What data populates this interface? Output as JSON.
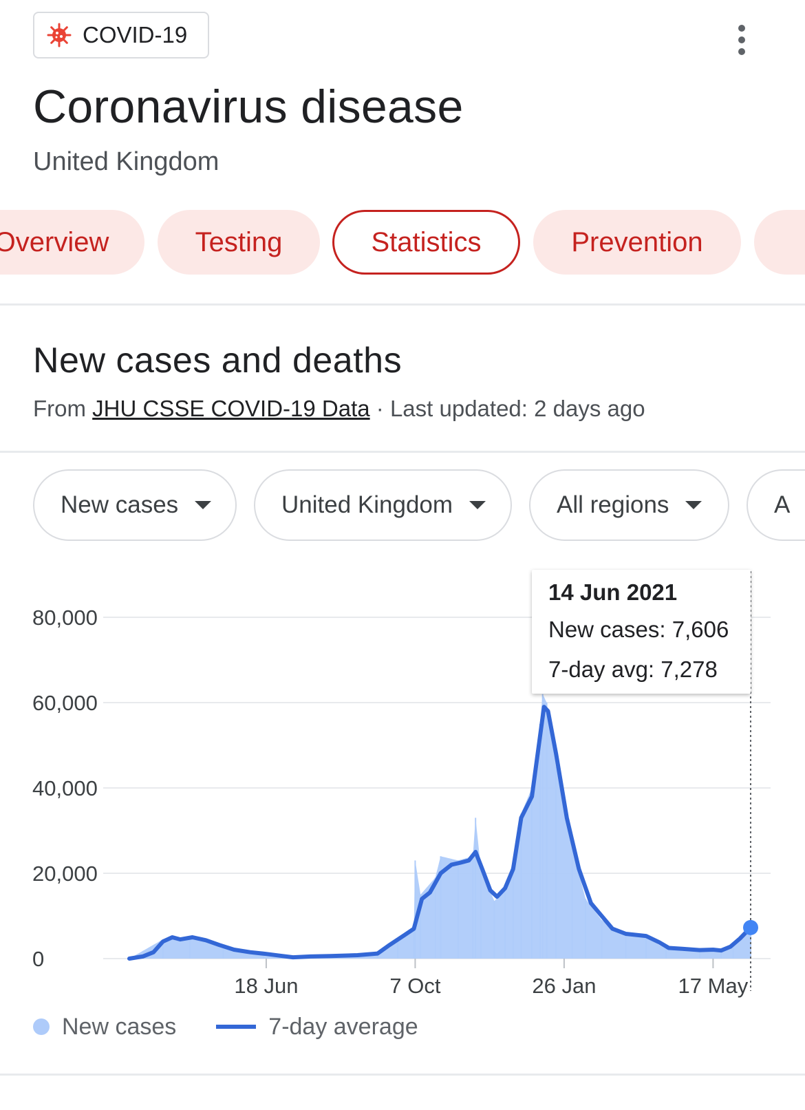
{
  "topic_chip": {
    "label": "COVID-19",
    "icon": "virus-icon",
    "icon_color": "#ea4335"
  },
  "header": {
    "title": "Coronavirus disease",
    "subtitle": "United Kingdom",
    "menu_icon": "more-vert-icon"
  },
  "tabs": [
    {
      "label": "Overview",
      "active": false
    },
    {
      "label": "Testing",
      "active": false
    },
    {
      "label": "Statistics",
      "active": true
    },
    {
      "label": "Prevention",
      "active": false
    },
    {
      "label": "",
      "active": false
    }
  ],
  "section": {
    "title": "New cases and deaths",
    "source_prefix": "From",
    "source_link": "JHU CSSE COVID-19 Data",
    "updated": "· Last updated: 2 days ago"
  },
  "filters": [
    {
      "label": "New cases"
    },
    {
      "label": "United Kingdom"
    },
    {
      "label": "All regions"
    },
    {
      "label": "A"
    }
  ],
  "tooltip": {
    "date": "14 Jun 2021",
    "new_cases": "New cases: 7,606",
    "avg": "7-day avg: 7,278"
  },
  "legend": {
    "bars_label": "New cases",
    "line_label": "7-day average"
  },
  "colors": {
    "accent": "#c5221f",
    "tab_bg": "#fce8e6",
    "bar": "#aecbfa",
    "line": "#3367d6"
  },
  "chart_data": {
    "type": "bar",
    "title": "",
    "xlabel": "",
    "ylabel": "",
    "ylim": [
      0,
      90000
    ],
    "grid": true,
    "yticks": [
      0,
      20000,
      40000,
      60000,
      80000
    ],
    "ytick_labels": [
      "0",
      "20,000",
      "40,000",
      "60,000",
      "80,000"
    ],
    "xticks": [
      {
        "x": 102,
        "label": "18 Jun"
      },
      {
        "x": 213,
        "label": "7 Oct"
      },
      {
        "x": 324,
        "label": "26 Jan"
      },
      {
        "x": 435,
        "label": "17 May"
      }
    ],
    "x_axis": "days since first case (tick labels are dates)",
    "x_range": [
      0,
      463
    ],
    "series": [
      {
        "name": "7-day average",
        "kind": "line",
        "points": [
          [
            0,
            0
          ],
          [
            10,
            500
          ],
          [
            18,
            1500
          ],
          [
            25,
            4000
          ],
          [
            32,
            5000
          ],
          [
            38,
            4500
          ],
          [
            47,
            5000
          ],
          [
            57,
            4300
          ],
          [
            67,
            3200
          ],
          [
            78,
            2100
          ],
          [
            90,
            1500
          ],
          [
            102,
            1100
          ],
          [
            112,
            700
          ],
          [
            122,
            300
          ],
          [
            135,
            500
          ],
          [
            150,
            600
          ],
          [
            170,
            800
          ],
          [
            185,
            1200
          ],
          [
            193,
            3000
          ],
          [
            205,
            5500
          ],
          [
            212,
            7000
          ],
          [
            218,
            14000
          ],
          [
            224,
            15500
          ],
          [
            232,
            20000
          ],
          [
            240,
            22000
          ],
          [
            247,
            22500
          ],
          [
            253,
            23000
          ],
          [
            258,
            25000
          ],
          [
            263,
            21000
          ],
          [
            269,
            16000
          ],
          [
            274,
            14500
          ],
          [
            280,
            16500
          ],
          [
            286,
            21000
          ],
          [
            292,
            33000
          ],
          [
            300,
            38000
          ],
          [
            306,
            52000
          ],
          [
            309,
            59000
          ],
          [
            312,
            58000
          ],
          [
            318,
            48000
          ],
          [
            326,
            33000
          ],
          [
            335,
            21000
          ],
          [
            344,
            13000
          ],
          [
            352,
            10000
          ],
          [
            360,
            7000
          ],
          [
            370,
            5800
          ],
          [
            385,
            5300
          ],
          [
            395,
            3800
          ],
          [
            402,
            2500
          ],
          [
            412,
            2300
          ],
          [
            425,
            2000
          ],
          [
            435,
            2100
          ],
          [
            441,
            1900
          ],
          [
            448,
            2800
          ],
          [
            455,
            4700
          ],
          [
            463,
            7278
          ]
        ]
      },
      {
        "name": "New cases",
        "kind": "bars",
        "points": [
          [
            0,
            0
          ],
          [
            25,
            4500
          ],
          [
            45,
            5000
          ],
          [
            70,
            3000
          ],
          [
            100,
            1200
          ],
          [
            122,
            400
          ],
          [
            150,
            700
          ],
          [
            185,
            1400
          ],
          [
            200,
            4500
          ],
          [
            212,
            7500
          ],
          [
            213,
            23000
          ],
          [
            217,
            15000
          ],
          [
            228,
            19000
          ],
          [
            232,
            24000
          ],
          [
            245,
            23000
          ],
          [
            256,
            24000
          ],
          [
            258,
            33000
          ],
          [
            262,
            21000
          ],
          [
            272,
            13500
          ],
          [
            280,
            16000
          ],
          [
            286,
            23000
          ],
          [
            292,
            34000
          ],
          [
            300,
            40000
          ],
          [
            306,
            55000
          ],
          [
            308,
            62000
          ],
          [
            311,
            60000
          ],
          [
            318,
            45000
          ],
          [
            330,
            26000
          ],
          [
            340,
            14000
          ],
          [
            352,
            9000
          ],
          [
            370,
            5500
          ],
          [
            385,
            5000
          ],
          [
            400,
            2300
          ],
          [
            425,
            2000
          ],
          [
            441,
            1800
          ],
          [
            450,
            3500
          ],
          [
            463,
            7606
          ]
        ]
      }
    ],
    "highlight": {
      "x": 463,
      "date": "14 Jun 2021",
      "new_cases": 7606,
      "avg": 7278
    }
  }
}
